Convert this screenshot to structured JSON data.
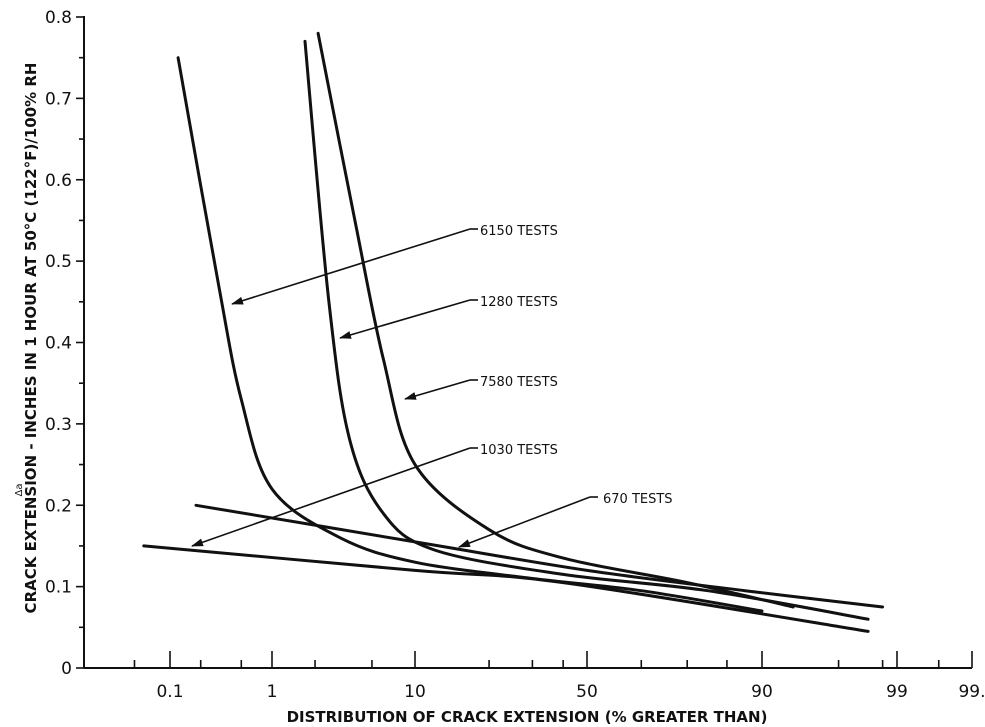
{
  "chart_data": {
    "type": "line",
    "title": "",
    "xlabel": "DISTRIBUTION OF CRACK EXTENSION (% GREATER THAN)",
    "ylabel": "CRACK EXTENSION - INCHES IN 1 HOUR AT 50°C (122°F)/100% RH",
    "ylabel_prefix": "Δa",
    "x_scale": "normal-probability",
    "x_ticks": [
      "0.1",
      "1",
      "10",
      "50",
      "90",
      "99",
      "99."
    ],
    "y_ticks": [
      "0",
      "0.1",
      "0.2",
      "0.3",
      "0.4",
      "0.5",
      "0.6",
      "0.7",
      "0.8"
    ],
    "ylim": [
      0,
      0.8
    ],
    "grid": false,
    "series": [
      {
        "name": "6150 TESTS",
        "points": [
          [
            0.12,
            0.75
          ],
          [
            0.3,
            0.47
          ],
          [
            0.5,
            0.33
          ],
          [
            1,
            0.22
          ],
          [
            3,
            0.16
          ],
          [
            10,
            0.13
          ],
          [
            30,
            0.11
          ],
          [
            60,
            0.095
          ],
          [
            90,
            0.07
          ]
        ]
      },
      {
        "name": "1280 TESTS",
        "points": [
          [
            1.7,
            0.77
          ],
          [
            2.5,
            0.45
          ],
          [
            3.5,
            0.28
          ],
          [
            6,
            0.19
          ],
          [
            12,
            0.145
          ],
          [
            40,
            0.115
          ],
          [
            75,
            0.095
          ],
          [
            97,
            0.06
          ]
        ]
      },
      {
        "name": "7580 TESTS",
        "points": [
          [
            2.1,
            0.78
          ],
          [
            3.8,
            0.55
          ],
          [
            6,
            0.38
          ],
          [
            10,
            0.25
          ],
          [
            20,
            0.17
          ],
          [
            40,
            0.135
          ],
          [
            70,
            0.105
          ],
          [
            92,
            0.075
          ]
        ]
      },
      {
        "name": "1030 TESTS",
        "points": [
          [
            0.06,
            0.15
          ],
          [
            10,
            0.12
          ],
          [
            40,
            0.105
          ],
          [
            97,
            0.045
          ]
        ]
      },
      {
        "name": "670 TESTS",
        "points": [
          [
            0.18,
            0.2
          ],
          [
            10,
            0.155
          ],
          [
            50,
            0.12
          ],
          [
            85,
            0.095
          ],
          [
            98,
            0.075
          ]
        ]
      }
    ]
  }
}
